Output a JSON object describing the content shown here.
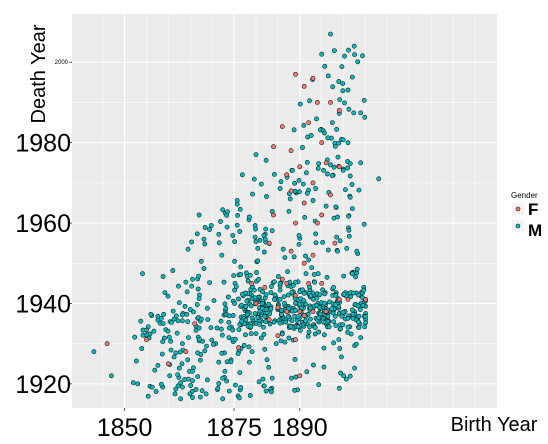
{
  "chart_data": {
    "type": "scatter",
    "xlabel": "Birth Year",
    "ylabel": "Death Year",
    "xlim": [
      1838,
      1935
    ],
    "ylim": [
      1914,
      2012
    ],
    "x_ticks": [
      {
        "value": 1850,
        "label": "1850"
      },
      {
        "value": 1875,
        "label": "1875"
      },
      {
        "value": 1890,
        "label": "1890"
      }
    ],
    "y_ticks": [
      {
        "value": 1920,
        "label": "1920",
        "size": "large"
      },
      {
        "value": 1940,
        "label": "1940",
        "size": "large"
      },
      {
        "value": 1960,
        "label": "1960",
        "size": "large"
      },
      {
        "value": 1980,
        "label": "1980",
        "size": "large"
      },
      {
        "value": 2000,
        "label": "2000",
        "size": "small"
      }
    ],
    "grid": true,
    "legend_placement": "right",
    "legend": {
      "title": "Gender",
      "entries": [
        {
          "label": "F",
          "color": "#f8766d"
        },
        {
          "label": "M",
          "color": "#00bfc4"
        }
      ]
    },
    "colors": {
      "panel": "#ebebeb",
      "gridline": "#ffffff",
      "F": "#f8766d",
      "M": "#00bfc4",
      "outline": "#1a1a1a"
    },
    "series": [
      {
        "name": "F",
        "points": [
          [
            1864,
            1928
          ],
          [
            1846,
            1930
          ],
          [
            1860,
            1925
          ],
          [
            1855,
            1931
          ],
          [
            1866,
            1935
          ],
          [
            1876,
            1929
          ],
          [
            1880,
            1940
          ],
          [
            1882,
            1944
          ],
          [
            1883,
            1955
          ],
          [
            1884,
            1962
          ],
          [
            1885,
            1939
          ],
          [
            1886,
            1946
          ],
          [
            1887,
            1972
          ],
          [
            1887,
            1938
          ],
          [
            1888,
            1953
          ],
          [
            1888,
            1968
          ],
          [
            1889,
            1942
          ],
          [
            1889,
            1960
          ],
          [
            1890,
            1974
          ],
          [
            1890,
            1938
          ],
          [
            1891,
            1965
          ],
          [
            1891,
            1950
          ],
          [
            1892,
            1945
          ],
          [
            1892,
            1985
          ],
          [
            1893,
            1938
          ],
          [
            1893,
            1970
          ],
          [
            1894,
            1960
          ],
          [
            1894,
            1990
          ],
          [
            1895,
            1945
          ],
          [
            1896,
            1975
          ],
          [
            1896,
            1938
          ],
          [
            1897,
            1990
          ],
          [
            1898,
            1955
          ],
          [
            1899,
            1941
          ],
          [
            1901,
            1941
          ],
          [
            1889,
            1997
          ],
          [
            1893,
            1996
          ],
          [
            1884,
            1979
          ],
          [
            1886,
            1984
          ],
          [
            1888,
            1978
          ],
          [
            1891,
            1994
          ],
          [
            1895,
            1980
          ],
          [
            1899,
            1988
          ],
          [
            1905,
            1941
          ],
          [
            1885,
            1932
          ],
          [
            1887,
            1945
          ],
          [
            1889,
            1931
          ],
          [
            1891,
            1937
          ],
          [
            1893,
            1952
          ],
          [
            1895,
            1962
          ],
          [
            1897,
            1967
          ],
          [
            1899,
            1974
          ],
          [
            1890,
            1922
          ],
          [
            1883,
            1936
          ],
          [
            1879,
            1945
          ]
        ]
      },
      {
        "name": "M",
        "points": []
      }
    ]
  }
}
